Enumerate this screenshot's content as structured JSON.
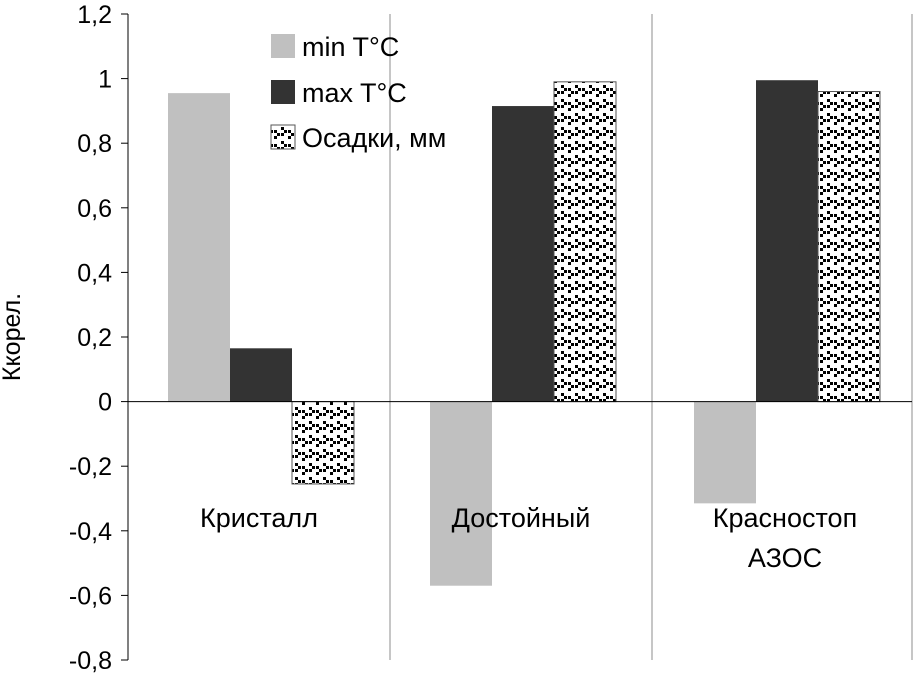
{
  "chart_data": {
    "type": "bar",
    "categories": [
      [
        "Кристалл"
      ],
      [
        "Достойный"
      ],
      [
        "Красностоп",
        "АЗОС"
      ]
    ],
    "series": [
      {
        "name": "min T°C",
        "color": "#c0c0c0",
        "pattern": "solid",
        "values": [
          0.955,
          -0.57,
          -0.315
        ]
      },
      {
        "name": "max T°C",
        "color": "#333333",
        "pattern": "solid",
        "values": [
          0.165,
          0.915,
          0.995
        ]
      },
      {
        "name": "Осадки, мм",
        "color": "#000000",
        "pattern": "dots",
        "values": [
          -0.255,
          0.99,
          0.96
        ]
      }
    ],
    "ylabel": "Ккорел.",
    "ylim": [
      -0.8,
      1.2
    ],
    "yticks": [
      "-0,8",
      "-0,6",
      "-0,4",
      "-0,2",
      "0",
      "0,2",
      "0,4",
      "0,6",
      "0,8",
      "1",
      "1,2"
    ],
    "ytick_values": [
      -0.8,
      -0.6,
      -0.4,
      -0.2,
      0,
      0.2,
      0.4,
      0.6,
      0.8,
      1,
      1.2
    ],
    "grid": "vertical-category-separators",
    "legend": "top-left-inside"
  }
}
